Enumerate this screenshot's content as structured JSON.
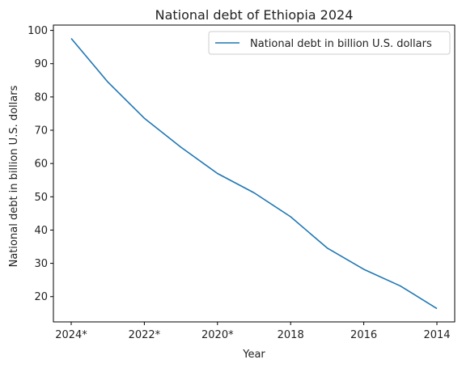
{
  "chart_data": {
    "type": "line",
    "title": "National debt of Ethiopia 2024",
    "xlabel": "Year",
    "ylabel": "National debt in billion U.S. dollars",
    "x": [
      "2024*",
      "2023*",
      "2022*",
      "2021*",
      "2020*",
      "2019",
      "2018",
      "2017",
      "2016",
      "2015",
      "2014"
    ],
    "x_tick_labels": [
      "2024*",
      "2022*",
      "2020*",
      "2018",
      "2016",
      "2014"
    ],
    "series": [
      {
        "name": "National debt in billion U.S. dollars",
        "color": "#1f77b4",
        "values": [
          97.6,
          84.5,
          73.6,
          64.9,
          57.0,
          51.2,
          44.0,
          34.6,
          28.2,
          23.2,
          16.4
        ]
      }
    ],
    "y_ticks": [
      20,
      30,
      40,
      50,
      60,
      70,
      80,
      90,
      100
    ],
    "ylim": [
      12.4,
      101.6
    ],
    "legend_position": "top-right",
    "grid": false
  }
}
